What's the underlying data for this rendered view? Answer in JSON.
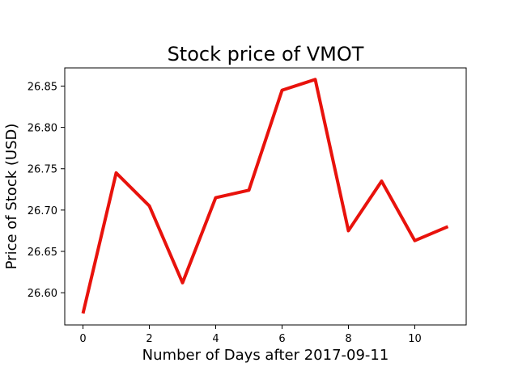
{
  "chart_data": {
    "type": "line",
    "title": "Stock price of VMOT",
    "xlabel": "Number of Days after 2017-09-11",
    "ylabel": "Price of Stock (USD)",
    "x": [
      0,
      1,
      2,
      3,
      4,
      5,
      6,
      7,
      8,
      9,
      10,
      11
    ],
    "series": [
      {
        "values": [
          26.575,
          26.745,
          26.705,
          26.612,
          26.715,
          26.724,
          26.845,
          26.858,
          26.675,
          26.735,
          26.663,
          26.68
        ],
        "color": "#e8120c"
      }
    ],
    "xlim": [
      -0.55,
      11.55
    ],
    "ylim": [
      26.561,
      26.872
    ],
    "xticks": [
      0,
      2,
      4,
      6,
      8,
      10
    ],
    "xtick_labels": [
      "0",
      "2",
      "4",
      "6",
      "8",
      "10"
    ],
    "yticks": [
      26.6,
      26.65,
      26.7,
      26.75,
      26.8,
      26.85
    ],
    "ytick_labels": [
      "26.60",
      "26.65",
      "26.70",
      "26.75",
      "26.80",
      "26.85"
    ],
    "grid": false,
    "legend": "none"
  }
}
